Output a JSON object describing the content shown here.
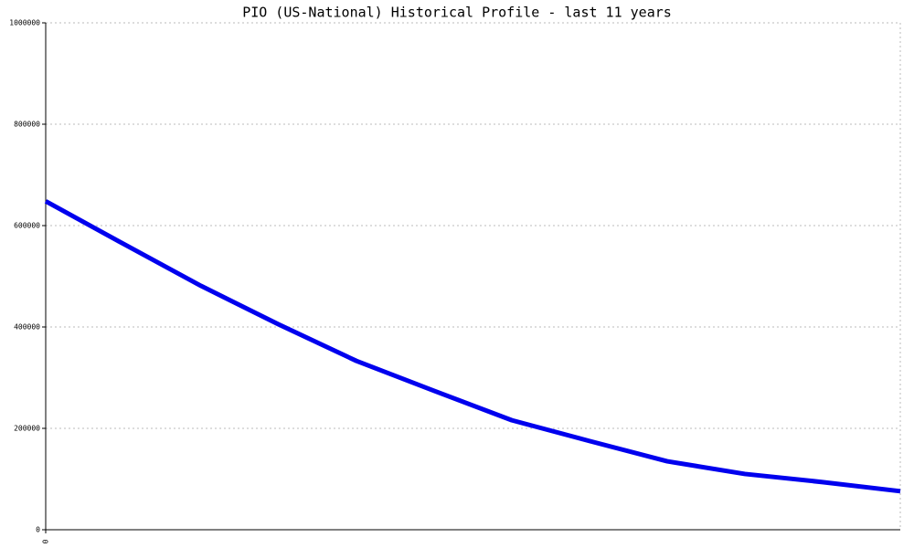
{
  "chart_data": {
    "type": "line",
    "title": "PIO (US-National) Historical Profile - last 11 years",
    "x": [
      0,
      1,
      2,
      3,
      4,
      5,
      6,
      7,
      8,
      9,
      10,
      11
    ],
    "series": [
      {
        "color": "#0000ee",
        "values": [
          648000,
          564000,
          481000,
          405000,
          333000,
          274000,
          216000,
          175000,
          135000,
          110000,
          94000,
          76000
        ]
      }
    ],
    "xlim": [
      0,
      11
    ],
    "xticks": [
      0
    ],
    "ylim": [
      0,
      1000000
    ],
    "yticks": [
      0,
      200000,
      400000,
      600000,
      800000,
      1000000
    ],
    "grid": true
  }
}
